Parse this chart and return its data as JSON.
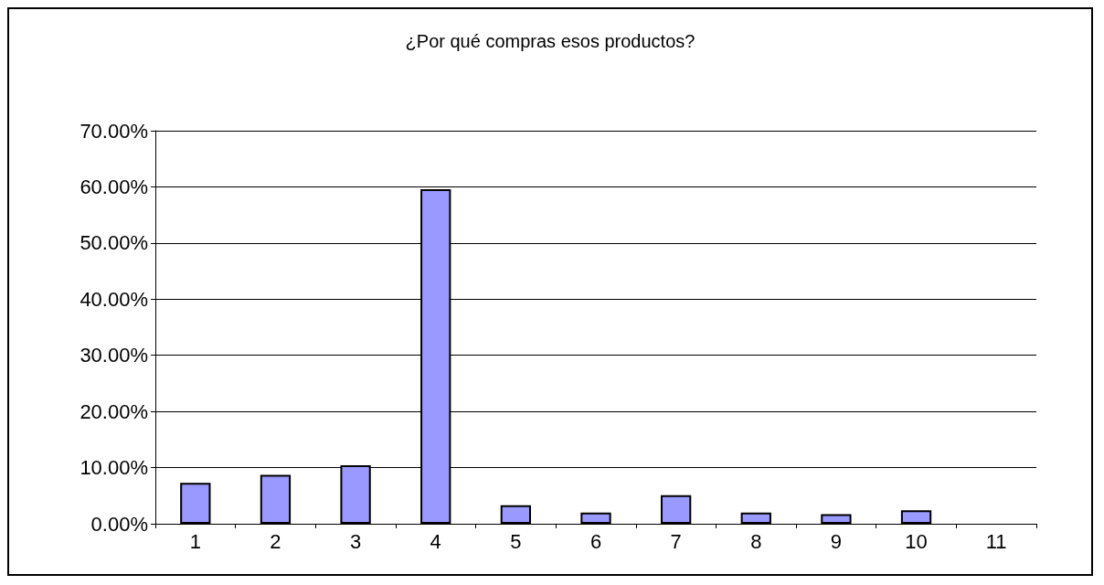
{
  "chart_data": {
    "type": "bar",
    "title": "¿Por qué compras esos productos?",
    "categories": [
      "1",
      "2",
      "3",
      "4",
      "5",
      "6",
      "7",
      "8",
      "9",
      "10",
      "11"
    ],
    "values": [
      7.3,
      8.7,
      10.4,
      59.6,
      3.3,
      2.0,
      5.1,
      2.0,
      1.7,
      2.4,
      0
    ],
    "color": "#9999ff",
    "ylim": [
      0,
      70
    ],
    "yticks": [
      {
        "value": 0,
        "label": "0.00%"
      },
      {
        "value": 10,
        "label": "10.00%"
      },
      {
        "value": 20,
        "label": "20.00%"
      },
      {
        "value": 30,
        "label": "30.00%"
      },
      {
        "value": 40,
        "label": "40.00%"
      },
      {
        "value": 50,
        "label": "50.00%"
      },
      {
        "value": 60,
        "label": "60.00%"
      },
      {
        "value": 70,
        "label": "70.00%"
      }
    ],
    "grid": "y"
  }
}
